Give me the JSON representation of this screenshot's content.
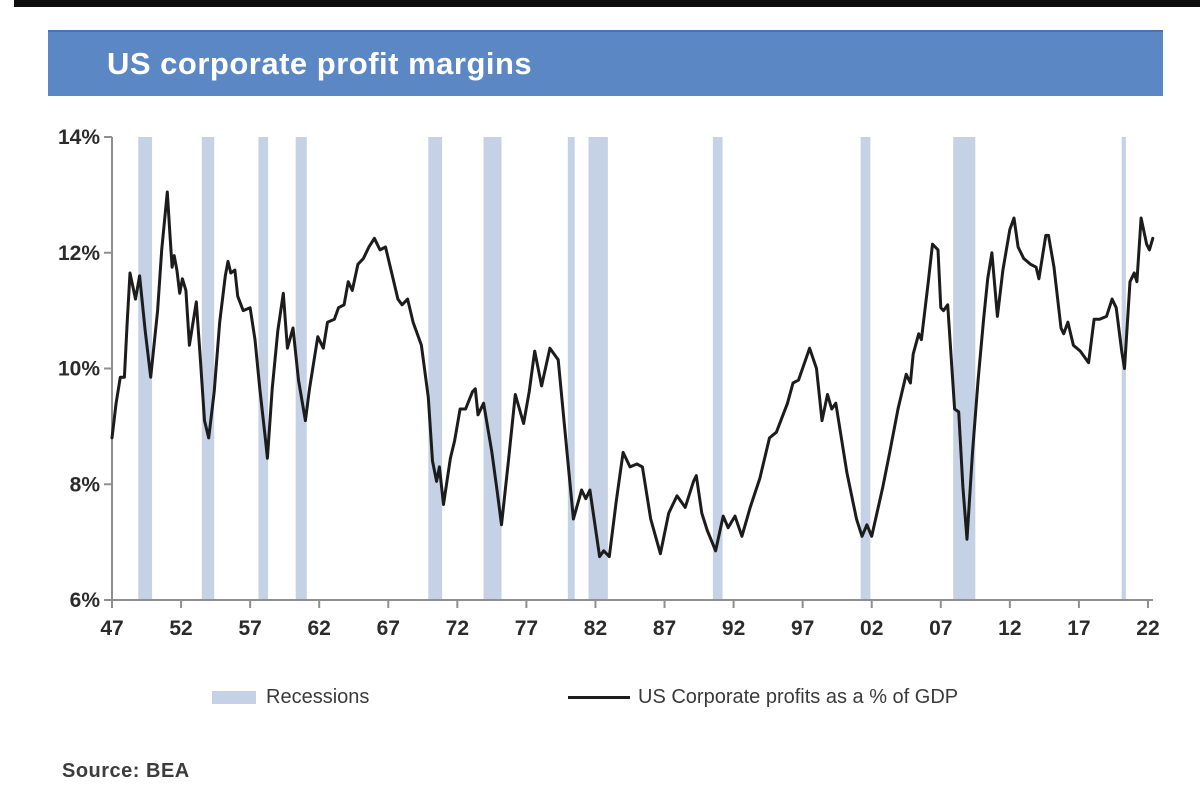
{
  "header": {
    "title": "US corporate profit margins",
    "bar_color": "#5b87c4"
  },
  "legend": {
    "recessions_label": "Recessions",
    "series_label": "US Corporate profits as a % of GDP"
  },
  "footer": {
    "source_label": "Source: BEA"
  },
  "chart_data": {
    "type": "line",
    "title": "US corporate profit margins",
    "xlabel": "",
    "ylabel": "",
    "grid": false,
    "legend_position": "bottom",
    "ylim": [
      6,
      14
    ],
    "xlim": [
      1947,
      2022.8
    ],
    "y_ticks": [
      "14%",
      "12%",
      "10%",
      "8%",
      "6%"
    ],
    "y_tick_values": [
      14,
      12,
      10,
      8,
      6
    ],
    "x_ticks": [
      "47",
      "52",
      "57",
      "62",
      "67",
      "72",
      "77",
      "82",
      "87",
      "92",
      "97",
      "02",
      "07",
      "12",
      "17",
      "22"
    ],
    "x_tick_years": [
      1947,
      1952,
      1957,
      1962,
      1967,
      1972,
      1977,
      1982,
      1987,
      1992,
      1997,
      2002,
      2007,
      2012,
      2017,
      2022
    ],
    "axis_color": "#8f8f8f",
    "tick_label_color": "#2b2b2b",
    "recession_color": "#c5d2e5",
    "line_color": "#1c1c1c",
    "recessions": [
      [
        1948.9,
        1949.9
      ],
      [
        1953.5,
        1954.4
      ],
      [
        1957.6,
        1958.3
      ],
      [
        1960.3,
        1961.1
      ],
      [
        1969.9,
        1970.9
      ],
      [
        1973.9,
        1975.2
      ],
      [
        1980.0,
        1980.5
      ],
      [
        1981.5,
        1982.9
      ],
      [
        1990.5,
        1991.2
      ],
      [
        2001.2,
        2001.9
      ],
      [
        2007.9,
        2009.5
      ],
      [
        2020.1,
        2020.4
      ]
    ],
    "series": [
      {
        "name": "US Corporate profits as a % of GDP",
        "points": [
          [
            1947.0,
            8.8
          ],
          [
            1947.3,
            9.4
          ],
          [
            1947.6,
            9.85
          ],
          [
            1947.9,
            9.85
          ],
          [
            1948.1,
            10.8
          ],
          [
            1948.3,
            11.65
          ],
          [
            1948.7,
            11.2
          ],
          [
            1949.0,
            11.6
          ],
          [
            1949.4,
            10.65
          ],
          [
            1949.8,
            9.85
          ],
          [
            1950.3,
            11.0
          ],
          [
            1950.6,
            12.05
          ],
          [
            1951.0,
            13.05
          ],
          [
            1951.2,
            12.3
          ],
          [
            1951.35,
            11.75
          ],
          [
            1951.5,
            11.95
          ],
          [
            1951.7,
            11.7
          ],
          [
            1951.9,
            11.3
          ],
          [
            1952.1,
            11.55
          ],
          [
            1952.35,
            11.35
          ],
          [
            1952.6,
            10.4
          ],
          [
            1953.1,
            11.15
          ],
          [
            1953.4,
            10.15
          ],
          [
            1953.7,
            9.1
          ],
          [
            1954.0,
            8.8
          ],
          [
            1954.4,
            9.6
          ],
          [
            1954.8,
            10.8
          ],
          [
            1955.2,
            11.6
          ],
          [
            1955.4,
            11.85
          ],
          [
            1955.6,
            11.65
          ],
          [
            1955.9,
            11.7
          ],
          [
            1956.1,
            11.25
          ],
          [
            1956.5,
            11.0
          ],
          [
            1957.0,
            11.05
          ],
          [
            1957.35,
            10.5
          ],
          [
            1957.7,
            9.65
          ],
          [
            1958.1,
            8.8
          ],
          [
            1958.25,
            8.45
          ],
          [
            1958.6,
            9.65
          ],
          [
            1959.0,
            10.65
          ],
          [
            1959.4,
            11.3
          ],
          [
            1959.7,
            10.35
          ],
          [
            1960.1,
            10.7
          ],
          [
            1960.5,
            9.8
          ],
          [
            1961.0,
            9.1
          ],
          [
            1961.3,
            9.65
          ],
          [
            1961.9,
            10.55
          ],
          [
            1962.3,
            10.35
          ],
          [
            1962.6,
            10.8
          ],
          [
            1963.1,
            10.85
          ],
          [
            1963.4,
            11.05
          ],
          [
            1963.8,
            11.1
          ],
          [
            1964.1,
            11.5
          ],
          [
            1964.4,
            11.35
          ],
          [
            1964.8,
            11.8
          ],
          [
            1965.2,
            11.9
          ],
          [
            1965.6,
            12.1
          ],
          [
            1966.0,
            12.25
          ],
          [
            1966.4,
            12.05
          ],
          [
            1966.8,
            12.1
          ],
          [
            1967.3,
            11.6
          ],
          [
            1967.7,
            11.2
          ],
          [
            1968.0,
            11.1
          ],
          [
            1968.4,
            11.2
          ],
          [
            1968.8,
            10.8
          ],
          [
            1969.4,
            10.4
          ],
          [
            1969.9,
            9.5
          ],
          [
            1970.2,
            8.4
          ],
          [
            1970.5,
            8.05
          ],
          [
            1970.7,
            8.3
          ],
          [
            1971.0,
            7.65
          ],
          [
            1971.5,
            8.45
          ],
          [
            1971.8,
            8.75
          ],
          [
            1972.2,
            9.3
          ],
          [
            1972.6,
            9.3
          ],
          [
            1973.1,
            9.6
          ],
          [
            1973.3,
            9.65
          ],
          [
            1973.5,
            9.2
          ],
          [
            1973.9,
            9.4
          ],
          [
            1974.5,
            8.55
          ],
          [
            1974.9,
            7.85
          ],
          [
            1975.2,
            7.3
          ],
          [
            1975.7,
            8.4
          ],
          [
            1976.2,
            9.55
          ],
          [
            1976.8,
            9.05
          ],
          [
            1977.2,
            9.6
          ],
          [
            1977.6,
            10.3
          ],
          [
            1978.1,
            9.7
          ],
          [
            1978.7,
            10.35
          ],
          [
            1979.3,
            10.15
          ],
          [
            1979.8,
            8.9
          ],
          [
            1980.4,
            7.4
          ],
          [
            1981.0,
            7.9
          ],
          [
            1981.3,
            7.75
          ],
          [
            1981.6,
            7.9
          ],
          [
            1982.3,
            6.75
          ],
          [
            1982.6,
            6.85
          ],
          [
            1983.0,
            6.75
          ],
          [
            1983.5,
            7.7
          ],
          [
            1984.0,
            8.55
          ],
          [
            1984.5,
            8.3
          ],
          [
            1985.0,
            8.35
          ],
          [
            1985.4,
            8.3
          ],
          [
            1986.0,
            7.4
          ],
          [
            1986.7,
            6.8
          ],
          [
            1987.3,
            7.5
          ],
          [
            1987.9,
            7.8
          ],
          [
            1988.5,
            7.6
          ],
          [
            1989.1,
            8.05
          ],
          [
            1989.3,
            8.15
          ],
          [
            1989.7,
            7.5
          ],
          [
            1990.1,
            7.2
          ],
          [
            1990.7,
            6.85
          ],
          [
            1991.25,
            7.45
          ],
          [
            1991.6,
            7.25
          ],
          [
            1992.1,
            7.45
          ],
          [
            1992.6,
            7.1
          ],
          [
            1993.2,
            7.6
          ],
          [
            1993.9,
            8.1
          ],
          [
            1994.6,
            8.8
          ],
          [
            1995.1,
            8.9
          ],
          [
            1995.9,
            9.4
          ],
          [
            1996.3,
            9.75
          ],
          [
            1996.7,
            9.8
          ],
          [
            1997.5,
            10.35
          ],
          [
            1998.0,
            10.0
          ],
          [
            1998.4,
            9.1
          ],
          [
            1998.8,
            9.55
          ],
          [
            1999.1,
            9.3
          ],
          [
            1999.4,
            9.4
          ],
          [
            2000.2,
            8.2
          ],
          [
            2000.9,
            7.4
          ],
          [
            2001.3,
            7.1
          ],
          [
            2001.65,
            7.3
          ],
          [
            2002.0,
            7.1
          ],
          [
            2002.8,
            7.95
          ],
          [
            2003.3,
            8.55
          ],
          [
            2003.9,
            9.3
          ],
          [
            2004.5,
            9.9
          ],
          [
            2004.8,
            9.75
          ],
          [
            2005.0,
            10.25
          ],
          [
            2005.4,
            10.6
          ],
          [
            2005.6,
            10.5
          ],
          [
            2006.1,
            11.5
          ],
          [
            2006.4,
            12.15
          ],
          [
            2006.8,
            12.05
          ],
          [
            2007.0,
            11.05
          ],
          [
            2007.2,
            11.0
          ],
          [
            2007.5,
            11.1
          ],
          [
            2008.0,
            9.3
          ],
          [
            2008.3,
            9.25
          ],
          [
            2008.6,
            7.95
          ],
          [
            2008.9,
            7.05
          ],
          [
            2009.3,
            8.55
          ],
          [
            2009.7,
            9.8
          ],
          [
            2010.1,
            10.85
          ],
          [
            2010.4,
            11.55
          ],
          [
            2010.7,
            12.0
          ],
          [
            2011.1,
            10.9
          ],
          [
            2011.5,
            11.7
          ],
          [
            2012.0,
            12.4
          ],
          [
            2012.3,
            12.6
          ],
          [
            2012.6,
            12.1
          ],
          [
            2013.0,
            11.9
          ],
          [
            2013.5,
            11.8
          ],
          [
            2013.9,
            11.75
          ],
          [
            2014.1,
            11.55
          ],
          [
            2014.6,
            12.3
          ],
          [
            2014.8,
            12.3
          ],
          [
            2015.2,
            11.75
          ],
          [
            2015.7,
            10.7
          ],
          [
            2015.9,
            10.6
          ],
          [
            2016.2,
            10.8
          ],
          [
            2016.6,
            10.4
          ],
          [
            2017.1,
            10.3
          ],
          [
            2017.7,
            10.1
          ],
          [
            2018.1,
            10.85
          ],
          [
            2018.5,
            10.85
          ],
          [
            2019.0,
            10.9
          ],
          [
            2019.4,
            11.2
          ],
          [
            2019.7,
            11.05
          ],
          [
            2020.1,
            10.3
          ],
          [
            2020.3,
            10.0
          ],
          [
            2020.7,
            11.5
          ],
          [
            2021.0,
            11.65
          ],
          [
            2021.2,
            11.5
          ],
          [
            2021.5,
            12.6
          ],
          [
            2021.9,
            12.15
          ],
          [
            2022.1,
            12.05
          ],
          [
            2022.35,
            12.25
          ]
        ]
      }
    ]
  }
}
